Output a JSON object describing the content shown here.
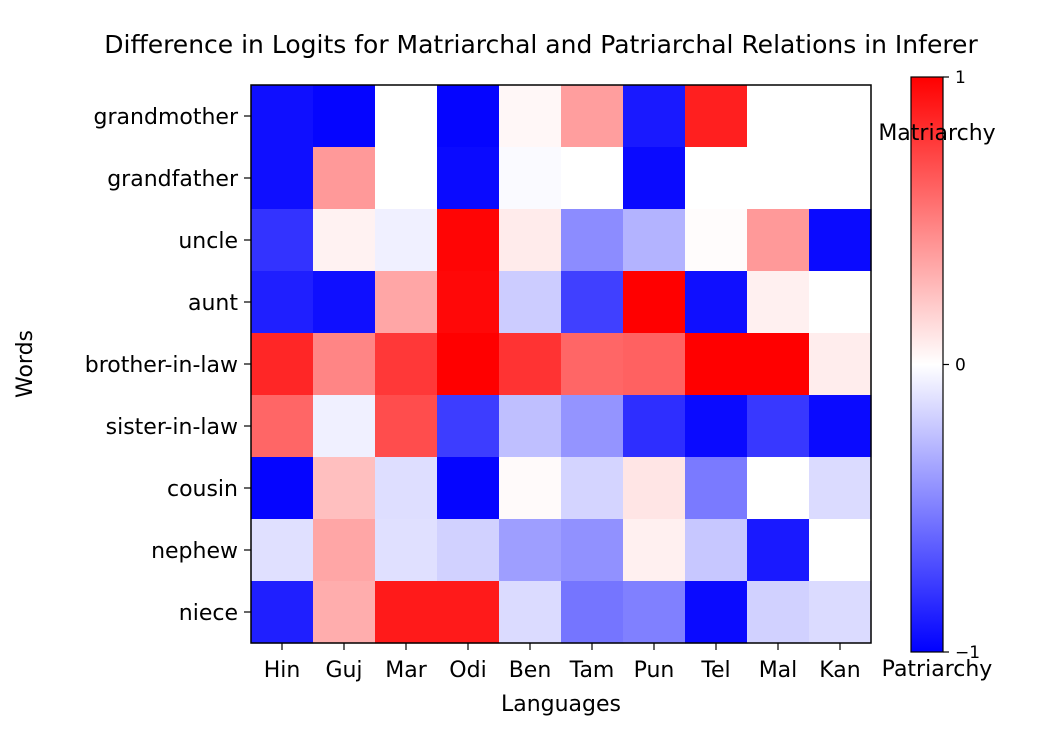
{
  "chart_data": {
    "type": "heatmap",
    "title": "Difference in Logits for Matriarchal and Patriarchal Relations in Inferer",
    "xlabel": "Languages",
    "ylabel": "Words",
    "x_categories": [
      "Hin",
      "Guj",
      "Mar",
      "Odi",
      "Ben",
      "Tam",
      "Pun",
      "Tel",
      "Mal",
      "Kan"
    ],
    "y_categories": [
      "grandmother",
      "grandfather",
      "uncle",
      "aunt",
      "brother-in-law",
      "sister-in-law",
      "cousin",
      "nephew",
      "niece"
    ],
    "values": [
      [
        -0.94,
        -0.98,
        0.0,
        -0.98,
        0.03,
        0.38,
        -0.9,
        0.88,
        0.0,
        0.0
      ],
      [
        -0.94,
        0.4,
        0.0,
        -0.96,
        -0.02,
        0.0,
        -0.96,
        0.0,
        0.0,
        0.0
      ],
      [
        -0.8,
        0.05,
        -0.06,
        0.98,
        0.08,
        -0.45,
        -0.3,
        0.01,
        0.4,
        -0.96
      ],
      [
        -0.88,
        -0.94,
        0.35,
        0.97,
        -0.2,
        -0.75,
        1.0,
        -0.94,
        0.06,
        0.0
      ],
      [
        0.85,
        0.48,
        0.78,
        1.0,
        0.8,
        0.6,
        0.62,
        1.0,
        1.0,
        0.07
      ],
      [
        0.6,
        -0.06,
        0.7,
        -0.76,
        -0.25,
        -0.42,
        -0.82,
        -0.96,
        -0.78,
        -0.96
      ],
      [
        -0.98,
        0.25,
        -0.13,
        -0.98,
        0.02,
        -0.17,
        0.1,
        -0.52,
        0.0,
        -0.14
      ],
      [
        -0.12,
        0.35,
        -0.12,
        -0.18,
        -0.38,
        -0.43,
        0.06,
        -0.22,
        -0.9,
        0.0
      ],
      [
        -0.88,
        0.32,
        0.9,
        0.9,
        -0.14,
        -0.54,
        -0.5,
        -0.96,
        -0.18,
        -0.14
      ]
    ],
    "colormap": "bwr",
    "vmin": -1,
    "vmax": 1,
    "colorbar": {
      "ticks": [
        "1",
        "0",
        "−1"
      ],
      "top_label": "Matriarchy",
      "bottom_label": "Patriarchy"
    },
    "colors": {
      "low": "#0000ff",
      "mid": "#ffffff",
      "high": "#ff0000"
    }
  }
}
